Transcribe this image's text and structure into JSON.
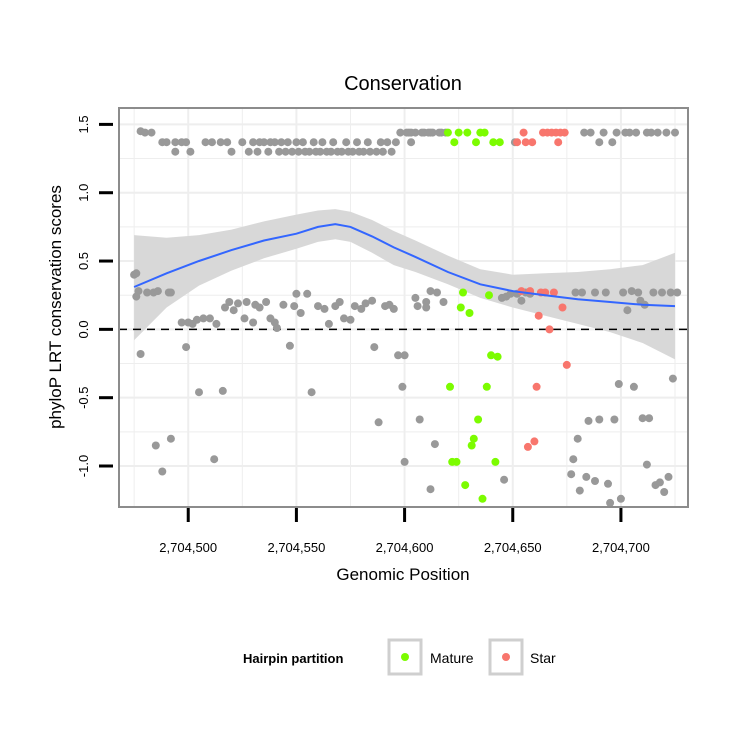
{
  "chart_data": {
    "type": "scatter",
    "title": "Conservation",
    "xlabel": "Genomic Position",
    "ylabel": "phyloP LRT conservation scores",
    "xlim": [
      2704468,
      2704731
    ],
    "ylim": [
      -1.3,
      1.62
    ],
    "x_ticks": [
      2704500,
      2704550,
      2704600,
      2704650,
      2704700
    ],
    "x_tick_labels": [
      "2,704,500",
      "2,704,550",
      "2,704,600",
      "2,704,650",
      "2,704,700"
    ],
    "y_ticks": [
      -1.0,
      -0.5,
      0.0,
      0.5,
      1.0,
      1.5
    ],
    "y_tick_labels": [
      "-1.0",
      "-0.5",
      "0.0",
      "0.5",
      "1.0",
      "1.5"
    ],
    "reference_line": {
      "y": 0,
      "style": "dashed"
    },
    "legend": {
      "title": "Hairpin partition",
      "position": "bottom",
      "entries": [
        {
          "label": "Mature",
          "color": "#7cfc00"
        },
        {
          "label": "Star",
          "color": "#f8766d"
        }
      ]
    },
    "colors": {
      "other": "#999999",
      "Mature": "#7cfc00",
      "Star": "#f8766d",
      "smooth_line": "#3366ff",
      "ribbon": "#d6d6d6",
      "panel_border": "#8c8c8c",
      "grid": "#eeeeee"
    },
    "series": [
      {
        "name": "Other",
        "points": [
          [
            2704475,
            0.4
          ],
          [
            2704476,
            0.41
          ],
          [
            2704476,
            0.24
          ],
          [
            2704477,
            0.28
          ],
          [
            2704478,
            -0.18
          ],
          [
            2704478,
            1.45
          ],
          [
            2704480,
            1.44
          ],
          [
            2704481,
            0.27
          ],
          [
            2704483,
            1.44
          ],
          [
            2704484,
            0.27
          ],
          [
            2704485,
            -0.85
          ],
          [
            2704486,
            0.28
          ],
          [
            2704488,
            1.37
          ],
          [
            2704488,
            -1.04
          ],
          [
            2704490,
            1.37
          ],
          [
            2704491,
            0.27
          ],
          [
            2704492,
            -0.8
          ],
          [
            2704492,
            0.27
          ],
          [
            2704494,
            1.3
          ],
          [
            2704494,
            1.37
          ],
          [
            2704497,
            1.37
          ],
          [
            2704497,
            0.05
          ],
          [
            2704499,
            -0.13
          ],
          [
            2704499,
            1.37
          ],
          [
            2704500,
            0.05
          ],
          [
            2704501,
            1.3
          ],
          [
            2704502,
            0.04
          ],
          [
            2704504,
            0.07
          ],
          [
            2704505,
            -0.46
          ],
          [
            2704507,
            0.08
          ],
          [
            2704508,
            1.37
          ],
          [
            2704510,
            0.08
          ],
          [
            2704511,
            1.37
          ],
          [
            2704512,
            -0.95
          ],
          [
            2704513,
            0.04
          ],
          [
            2704515,
            1.37
          ],
          [
            2704516,
            -0.45
          ],
          [
            2704517,
            0.16
          ],
          [
            2704518,
            1.37
          ],
          [
            2704519,
            0.2
          ],
          [
            2704520,
            1.3
          ],
          [
            2704521,
            0.14
          ],
          [
            2704523,
            0.19
          ],
          [
            2704525,
            1.37
          ],
          [
            2704526,
            0.08
          ],
          [
            2704527,
            0.2
          ],
          [
            2704528,
            1.3
          ],
          [
            2704530,
            0.05
          ],
          [
            2704530,
            1.37
          ],
          [
            2704531,
            0.18
          ],
          [
            2704532,
            1.3
          ],
          [
            2704533,
            0.16
          ],
          [
            2704533,
            1.37
          ],
          [
            2704535,
            1.37
          ],
          [
            2704536,
            0.2
          ],
          [
            2704537,
            1.3
          ],
          [
            2704538,
            0.08
          ],
          [
            2704538,
            1.37
          ],
          [
            2704540,
            0.05
          ],
          [
            2704540,
            1.37
          ],
          [
            2704541,
            0.01
          ],
          [
            2704542,
            1.3
          ],
          [
            2704543,
            1.37
          ],
          [
            2704544,
            0.18
          ],
          [
            2704545,
            1.3
          ],
          [
            2704546,
            1.37
          ],
          [
            2704547,
            -0.12
          ],
          [
            2704548,
            1.3
          ],
          [
            2704549,
            0.17
          ],
          [
            2704550,
            0.26
          ],
          [
            2704550,
            1.37
          ],
          [
            2704551,
            1.3
          ],
          [
            2704552,
            0.12
          ],
          [
            2704553,
            1.37
          ],
          [
            2704554,
            1.3
          ],
          [
            2704555,
            0.26
          ],
          [
            2704556,
            1.3
          ],
          [
            2704557,
            -0.46
          ],
          [
            2704558,
            1.37
          ],
          [
            2704559,
            1.3
          ],
          [
            2704560,
            0.17
          ],
          [
            2704561,
            1.3
          ],
          [
            2704562,
            1.37
          ],
          [
            2704563,
            0.15
          ],
          [
            2704564,
            1.3
          ],
          [
            2704565,
            0.04
          ],
          [
            2704566,
            1.3
          ],
          [
            2704567,
            1.37
          ],
          [
            2704568,
            0.17
          ],
          [
            2704569,
            1.3
          ],
          [
            2704570,
            0.2
          ],
          [
            2704571,
            1.3
          ],
          [
            2704572,
            0.08
          ],
          [
            2704573,
            1.37
          ],
          [
            2704574,
            1.3
          ],
          [
            2704575,
            0.07
          ],
          [
            2704576,
            1.3
          ],
          [
            2704577,
            0.17
          ],
          [
            2704578,
            1.37
          ],
          [
            2704579,
            1.3
          ],
          [
            2704580,
            0.15
          ],
          [
            2704581,
            1.3
          ],
          [
            2704582,
            0.19
          ],
          [
            2704583,
            1.37
          ],
          [
            2704584,
            1.3
          ],
          [
            2704585,
            0.21
          ],
          [
            2704586,
            -0.13
          ],
          [
            2704587,
            1.3
          ],
          [
            2704588,
            -0.68
          ],
          [
            2704589,
            1.37
          ],
          [
            2704590,
            1.3
          ],
          [
            2704591,
            0.17
          ],
          [
            2704592,
            1.37
          ],
          [
            2704593,
            0.18
          ],
          [
            2704594,
            1.3
          ],
          [
            2704595,
            0.15
          ],
          [
            2704596,
            1.37
          ],
          [
            2704597,
            -0.19
          ],
          [
            2704598,
            1.44
          ],
          [
            2704599,
            -0.42
          ],
          [
            2704600,
            -0.97
          ],
          [
            2704600,
            -0.19
          ],
          [
            2704602,
            1.44
          ],
          [
            2704603,
            1.37
          ],
          [
            2704605,
            1.44
          ],
          [
            2704606,
            0.17
          ],
          [
            2704607,
            -0.66
          ],
          [
            2704609,
            1.44
          ],
          [
            2704610,
            0.2
          ],
          [
            2704611,
            1.44
          ],
          [
            2704612,
            -1.17
          ],
          [
            2704612,
            0.28
          ],
          [
            2704613,
            1.44
          ],
          [
            2704614,
            -0.84
          ],
          [
            2704615,
            0.27
          ],
          [
            2704617,
            1.44
          ],
          [
            2704618,
            0.2
          ]
        ]
      },
      {
        "name": "Other",
        "points": [
          [
            2704601,
            1.44
          ],
          [
            2704603,
            1.44
          ],
          [
            2704608,
            1.44
          ],
          [
            2704616,
            1.44
          ],
          [
            2704619,
            1.44
          ],
          [
            2704612,
            1.44
          ],
          [
            2704605,
            0.23
          ],
          [
            2704610,
            0.16
          ]
        ]
      },
      {
        "name": "Mature",
        "points": [
          [
            2704620,
            1.44
          ],
          [
            2704621,
            -0.42
          ],
          [
            2704622,
            -0.97
          ],
          [
            2704623,
            1.37
          ],
          [
            2704624,
            -0.97
          ],
          [
            2704625,
            1.44
          ],
          [
            2704626,
            0.16
          ],
          [
            2704627,
            0.27
          ],
          [
            2704628,
            -1.14
          ],
          [
            2704629,
            1.44
          ],
          [
            2704630,
            0.12
          ],
          [
            2704631,
            -0.85
          ],
          [
            2704632,
            -0.8
          ],
          [
            2704633,
            1.37
          ],
          [
            2704634,
            -0.66
          ],
          [
            2704635,
            1.44
          ],
          [
            2704636,
            -1.24
          ],
          [
            2704637,
            1.44
          ],
          [
            2704638,
            -0.42
          ],
          [
            2704639,
            0.25
          ],
          [
            2704640,
            -0.19
          ],
          [
            2704641,
            1.37
          ],
          [
            2704642,
            -0.97
          ],
          [
            2704643,
            -0.2
          ],
          [
            2704644,
            1.37
          ]
        ]
      },
      {
        "name": "Other",
        "points": [
          [
            2704645,
            0.23
          ],
          [
            2704647,
            0.24
          ],
          [
            2704649,
            0.26
          ],
          [
            2704651,
            1.37
          ],
          [
            2704652,
            0.26
          ],
          [
            2704656,
            0.27
          ],
          [
            2704658,
            0.26
          ],
          [
            2704646,
            -1.1
          ],
          [
            2704654,
            0.21
          ]
        ]
      },
      {
        "name": "Star",
        "points": [
          [
            2704652,
            1.37
          ],
          [
            2704654,
            0.28
          ],
          [
            2704655,
            1.44
          ],
          [
            2704656,
            1.37
          ],
          [
            2704657,
            -0.86
          ],
          [
            2704658,
            0.28
          ],
          [
            2704659,
            1.37
          ],
          [
            2704660,
            -0.82
          ],
          [
            2704661,
            -0.42
          ],
          [
            2704662,
            0.1
          ],
          [
            2704663,
            0.27
          ],
          [
            2704664,
            1.44
          ],
          [
            2704665,
            0.27
          ],
          [
            2704666,
            1.44
          ],
          [
            2704667,
            0.0
          ],
          [
            2704668,
            1.44
          ],
          [
            2704669,
            0.27
          ],
          [
            2704670,
            1.44
          ],
          [
            2704671,
            1.37
          ],
          [
            2704672,
            1.44
          ],
          [
            2704673,
            0.16
          ],
          [
            2704674,
            1.44
          ],
          [
            2704675,
            -0.26
          ]
        ]
      },
      {
        "name": "Other",
        "points": [
          [
            2704677,
            -1.06
          ],
          [
            2704678,
            -0.95
          ],
          [
            2704679,
            0.27
          ],
          [
            2704680,
            -0.8
          ],
          [
            2704681,
            -1.18
          ],
          [
            2704682,
            0.27
          ],
          [
            2704683,
            1.44
          ],
          [
            2704684,
            -1.08
          ],
          [
            2704685,
            -0.67
          ],
          [
            2704686,
            1.44
          ],
          [
            2704688,
            0.27
          ],
          [
            2704688,
            -1.11
          ],
          [
            2704690,
            1.37
          ],
          [
            2704690,
            -0.66
          ],
          [
            2704692,
            1.44
          ],
          [
            2704693,
            0.27
          ],
          [
            2704694,
            -1.13
          ],
          [
            2704695,
            -1.27
          ],
          [
            2704696,
            1.37
          ],
          [
            2704697,
            -0.66
          ],
          [
            2704698,
            1.44
          ],
          [
            2704699,
            -0.4
          ],
          [
            2704700,
            -1.24
          ],
          [
            2704701,
            0.27
          ],
          [
            2704702,
            1.44
          ],
          [
            2704703,
            0.14
          ],
          [
            2704704,
            1.44
          ],
          [
            2704705,
            0.28
          ],
          [
            2704706,
            -0.42
          ],
          [
            2704707,
            1.44
          ],
          [
            2704708,
            0.27
          ],
          [
            2704709,
            0.21
          ],
          [
            2704710,
            -0.65
          ],
          [
            2704711,
            0.18
          ],
          [
            2704712,
            -0.99
          ],
          [
            2704712,
            1.44
          ],
          [
            2704713,
            -0.65
          ],
          [
            2704714,
            1.44
          ],
          [
            2704715,
            0.27
          ],
          [
            2704716,
            -1.14
          ],
          [
            2704717,
            1.44
          ],
          [
            2704718,
            -1.12
          ],
          [
            2704719,
            0.27
          ],
          [
            2704720,
            -1.19
          ],
          [
            2704721,
            1.44
          ],
          [
            2704722,
            -1.08
          ],
          [
            2704723,
            0.27
          ],
          [
            2704724,
            -0.36
          ],
          [
            2704725,
            1.44
          ],
          [
            2704726,
            0.27
          ]
        ]
      }
    ],
    "smooth": {
      "x": [
        2704475,
        2704490,
        2704505,
        2704520,
        2704535,
        2704550,
        2704560,
        2704568,
        2704575,
        2704585,
        2704595,
        2704605,
        2704620,
        2704635,
        2704650,
        2704665,
        2704680,
        2704695,
        2704710,
        2704725
      ],
      "y": [
        0.31,
        0.41,
        0.5,
        0.58,
        0.65,
        0.7,
        0.75,
        0.77,
        0.75,
        0.68,
        0.6,
        0.53,
        0.42,
        0.33,
        0.28,
        0.25,
        0.22,
        0.2,
        0.18,
        0.17
      ],
      "lower": [
        -0.08,
        0.16,
        0.32,
        0.43,
        0.52,
        0.59,
        0.64,
        0.66,
        0.64,
        0.56,
        0.47,
        0.42,
        0.33,
        0.23,
        0.16,
        0.1,
        0.04,
        -0.02,
        -0.1,
        -0.22
      ],
      "upper": [
        0.69,
        0.67,
        0.69,
        0.73,
        0.79,
        0.84,
        0.87,
        0.88,
        0.86,
        0.8,
        0.72,
        0.65,
        0.54,
        0.44,
        0.4,
        0.41,
        0.42,
        0.44,
        0.47,
        0.56
      ]
    }
  }
}
